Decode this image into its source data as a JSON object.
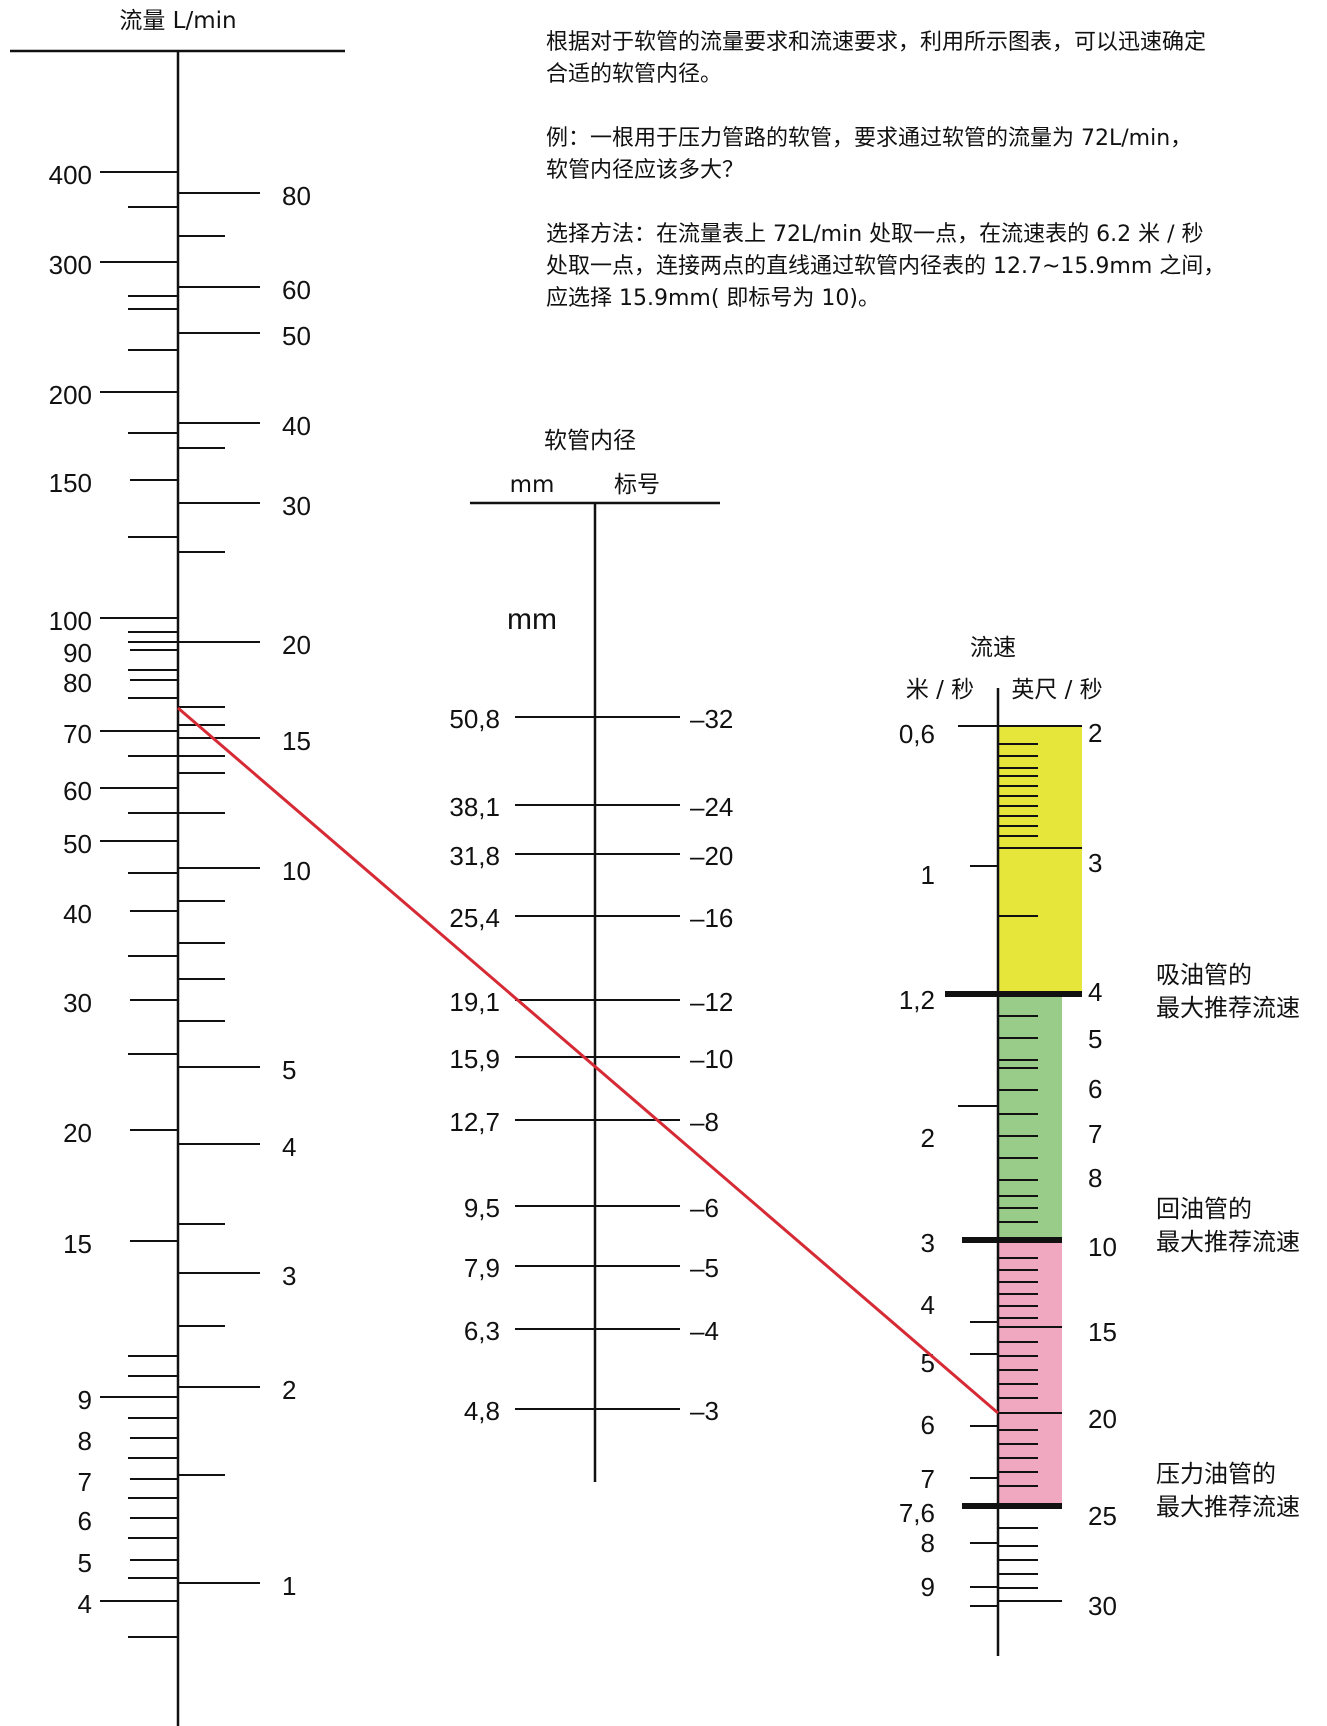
{
  "description": {
    "p1_line1": "根据对于软管的流量要求和流速要求，利用所示图表，可以迅速确定",
    "p1_line2": "合适的软管内径。",
    "p2_line1": "例：一根用于压力管路的软管，要求通过软管的流量为 72L/min，",
    "p2_line2": "软管内径应该多大？",
    "p3_line1": "选择方法：在流量表上 72L/min 处取一点，在流速表的 6.2 米 / 秒",
    "p3_line2": "处取一点，连接两点的直线通过软管内径表的 12.7~15.9mm 之间，",
    "p3_line3": "应选择 15.9mm( 即标号为 10)。"
  },
  "flow_scale": {
    "title": "流量 L/min",
    "left_labels": [
      "400",
      "300",
      "200",
      "150",
      "100",
      "90",
      "80",
      "70",
      "60",
      "50",
      "40",
      "30",
      "20",
      "15",
      "9",
      "8",
      "7",
      "6",
      "5",
      "4"
    ],
    "right_labels": [
      "80",
      "60",
      "50",
      "40",
      "30",
      "20",
      "15",
      "10",
      "5",
      "4",
      "3",
      "2",
      "1"
    ]
  },
  "diameter_scale": {
    "title": "软管内径",
    "col_mm": "mm",
    "col_dash": "标号",
    "unit_mm": "mm",
    "mm_labels": [
      "50,8",
      "38,1",
      "31,8",
      "25,4",
      "19,1",
      "15,9",
      "12,7",
      "9,5",
      "7,9",
      "6,3",
      "4,8"
    ],
    "dash_labels": [
      "–32",
      "–24",
      "–20",
      "–16",
      "–12",
      "–10",
      "–8",
      "–6",
      "–5",
      "–4",
      "–3"
    ]
  },
  "velocity_scale": {
    "title": "流速",
    "unit_left": "米 / 秒",
    "unit_right": "英尺 / 秒",
    "left_labels": [
      "0,6",
      "1",
      "1,2",
      "2",
      "3",
      "4",
      "5",
      "6",
      "7",
      "7,6",
      "8",
      "9"
    ],
    "right_labels": [
      "2",
      "3",
      "4",
      "5",
      "6",
      "7",
      "8",
      "10",
      "15",
      "20",
      "25",
      "30"
    ],
    "zones": [
      {
        "name": "suction",
        "color": "#e6e53a",
        "label_line1": "吸油管的",
        "label_line2": "最大推荐流速"
      },
      {
        "name": "return",
        "color": "#98cc88",
        "label_line1": "回油管的",
        "label_line2": "最大推荐流速"
      },
      {
        "name": "pressure",
        "color": "#f0a8c0",
        "label_line1": "压力油管的",
        "label_line2": "最大推荐流速"
      }
    ]
  },
  "example_line": {
    "flow_lpm": 72,
    "velocity_mps": 6.2,
    "color": "#d62a35"
  }
}
